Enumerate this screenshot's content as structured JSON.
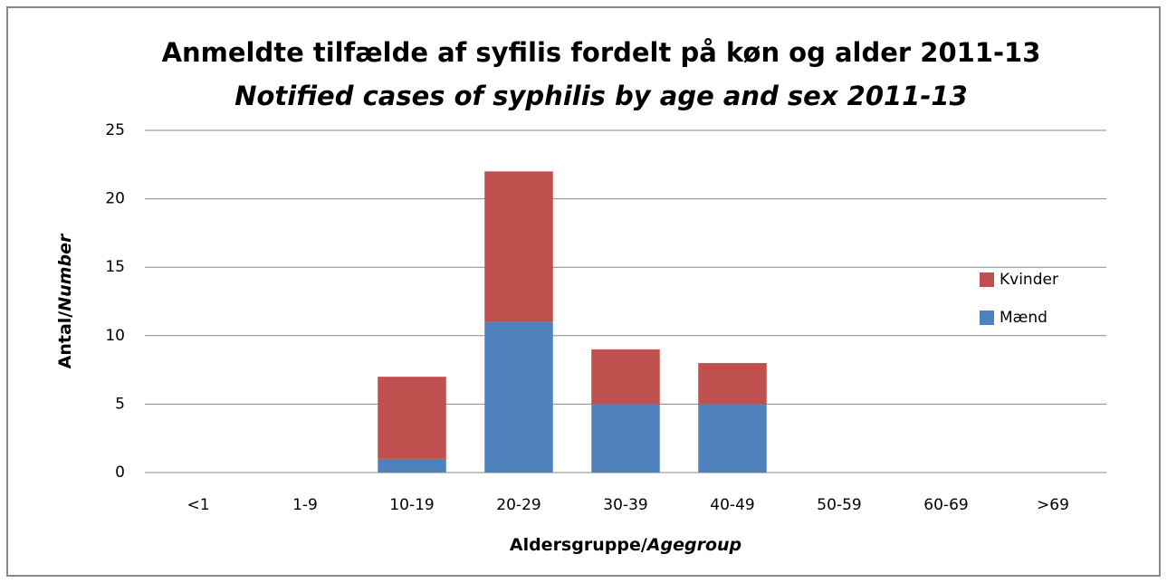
{
  "chart_data": {
    "type": "stacked_bar",
    "title": "Anmeldte tilfælde af syfilis fordelt på køn og alder 2011-13",
    "subtitle": "Notified cases of syphilis by age and sex 2011-13",
    "ylabel": [
      "Antal/",
      "Number"
    ],
    "xlabel": [
      "Aldersgruppe/",
      "Agegroup"
    ],
    "categories": [
      "<1",
      "1-9",
      "10-19",
      "20-29",
      "30-39",
      "40-49",
      "50-59",
      "60-69",
      ">69"
    ],
    "series": [
      {
        "name": "Mænd",
        "color": "#4f81bd",
        "values": [
          0,
          0,
          1,
          11,
          5,
          5,
          0,
          0,
          0
        ]
      },
      {
        "name": "Kvinder",
        "color": "#c0504d",
        "values": [
          0,
          0,
          6,
          11,
          4,
          3,
          0,
          0,
          0
        ]
      }
    ],
    "ylim": [
      0,
      25
    ],
    "yticks": [
      0,
      5,
      10,
      15,
      20,
      25
    ],
    "grid": true,
    "legend": "right"
  }
}
